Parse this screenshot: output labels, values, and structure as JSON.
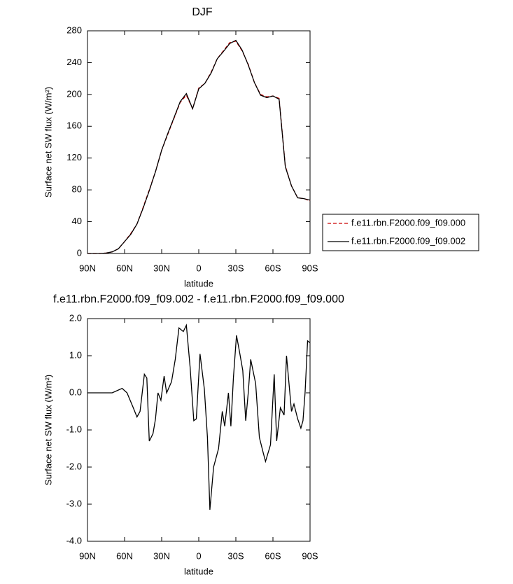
{
  "chart_data": [
    {
      "type": "line",
      "title": "DJF",
      "xlabel": "latitude",
      "ylabel": "Surface net SW flux (W/m²)",
      "x": [
        90,
        85,
        80,
        75,
        70,
        65,
        60,
        55,
        50,
        45,
        40,
        35,
        30,
        25,
        20,
        15,
        10,
        5,
        0,
        -5,
        -10,
        -15,
        -20,
        -25,
        -30,
        -35,
        -40,
        -45,
        -50,
        -55,
        -60,
        -65,
        -70,
        -75,
        -80,
        -85,
        -90
      ],
      "series": [
        {
          "name": "f.e11.rbn.F2000.f09_f09.000",
          "color": "#cc0000",
          "dash": "dashed",
          "values": [
            0,
            0,
            0,
            0.5,
            2,
            6,
            15,
            25,
            37,
            58,
            80,
            103,
            130,
            150,
            170,
            190,
            199,
            182,
            208,
            214,
            228,
            245,
            255,
            265,
            267,
            255,
            238,
            215,
            200,
            197,
            198,
            195,
            110,
            85,
            70,
            69,
            66
          ]
        },
        {
          "name": "f.e11.rbn.F2000.f09_f09.002",
          "color": "#000000",
          "dash": "solid",
          "values": [
            0,
            0,
            0,
            0.5,
            2,
            6,
            15,
            24,
            37,
            57,
            79,
            103,
            130,
            151,
            171,
            191,
            201,
            182,
            207,
            214,
            227,
            245,
            254,
            264,
            268,
            256,
            237,
            215,
            199,
            196,
            198,
            194,
            109,
            85,
            70,
            69,
            67
          ]
        }
      ],
      "xlim": [
        90,
        -90
      ],
      "xticks": [
        {
          "value": 90,
          "label": "90N"
        },
        {
          "value": 60,
          "label": "60N"
        },
        {
          "value": 30,
          "label": "30N"
        },
        0,
        {
          "value": -30,
          "label": "30S"
        },
        {
          "value": -60,
          "label": "60S"
        },
        {
          "value": -90,
          "label": "90S"
        }
      ],
      "ylim": [
        0,
        280
      ],
      "yticks": [
        0,
        40,
        80,
        120,
        160,
        200,
        240,
        280
      ],
      "legend": "right"
    },
    {
      "type": "line",
      "title": "f.e11.rbn.F2000.f09_f09.002 - f.e11.rbn.F2000.f09_f09.000",
      "xlabel": "latitude",
      "ylabel": "Surface net SW flux (W/m²)",
      "x": [
        90,
        80,
        70,
        62,
        58,
        53,
        50,
        47.5,
        44,
        42,
        40,
        37,
        35,
        33,
        30.6,
        28,
        26,
        22,
        19,
        16,
        12.5,
        10,
        7,
        4,
        2,
        -1,
        -4.5,
        -7,
        -9,
        -12,
        -16,
        -19,
        -21,
        -24,
        -26,
        -28,
        -30.5,
        -33,
        -35.6,
        -38,
        -40,
        -42,
        -46,
        -49,
        -52,
        -54,
        -58,
        -61,
        -63,
        -66,
        -69,
        -71,
        -75,
        -77,
        -80,
        -82.6,
        -84.3,
        -86,
        -88,
        -90
      ],
      "series": [
        {
          "color": "#000000",
          "dash": "solid",
          "values": [
            0,
            0,
            0,
            0.12,
            0,
            -0.4,
            -0.65,
            -0.5,
            0.5,
            0.4,
            -1.3,
            -1.1,
            -0.7,
            0,
            -0.2,
            0.45,
            0,
            0.3,
            0.9,
            1.75,
            1.65,
            1.82,
            0.7,
            -0.75,
            -0.7,
            1.05,
            0.1,
            -1.2,
            -3.15,
            -2,
            -1.5,
            -0.5,
            -0.9,
            0,
            -0.9,
            0.4,
            1.55,
            1.1,
            0.6,
            -0.75,
            0,
            0.9,
            0.25,
            -1.2,
            -1.6,
            -1.85,
            -1.4,
            0.5,
            -1.3,
            -0.4,
            -0.6,
            1,
            -0.5,
            -0.3,
            -0.7,
            -0.95,
            -0.75,
            0,
            1.4,
            1.35
          ]
        }
      ],
      "xlim": [
        90,
        -90
      ],
      "xticks": [
        {
          "value": 90,
          "label": "90N"
        },
        {
          "value": 60,
          "label": "60N"
        },
        {
          "value": 30,
          "label": "30N"
        },
        0,
        {
          "value": -30,
          "label": "30S"
        },
        {
          "value": -60,
          "label": "60S"
        },
        {
          "value": -90,
          "label": "90S"
        }
      ],
      "ylim": [
        -4,
        2
      ],
      "yticks": [
        {
          "value": -4,
          "label": "-4.0"
        },
        {
          "value": -3,
          "label": "-3.0"
        },
        {
          "value": -2,
          "label": "-2.0"
        },
        {
          "value": -1,
          "label": "-1.0"
        },
        {
          "value": 0,
          "label": "0.0"
        },
        {
          "value": 1,
          "label": "1.0"
        },
        {
          "value": 2,
          "label": "2.0"
        }
      ]
    }
  ]
}
